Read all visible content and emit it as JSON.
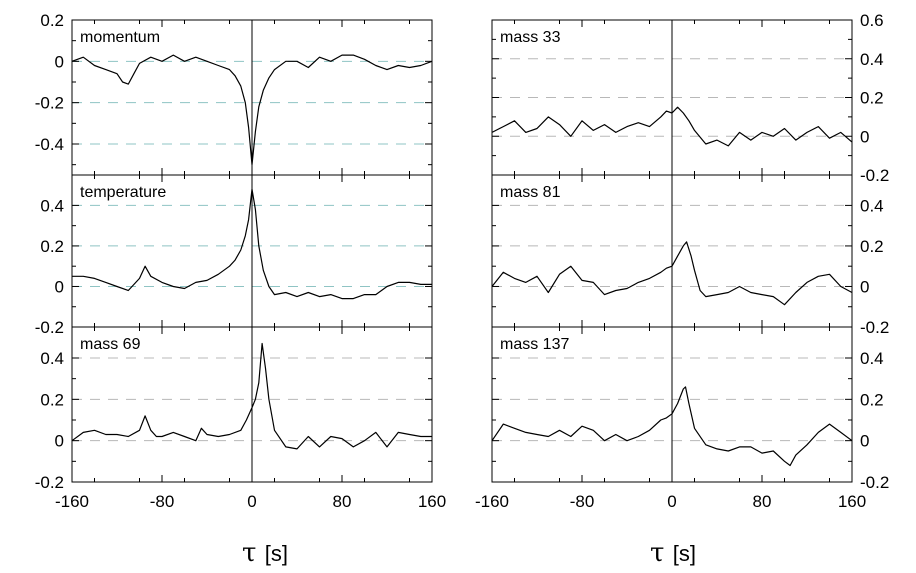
{
  "figure": {
    "x_title_symbol": "τ",
    "x_title_unit": "[s]"
  },
  "chart_data": [
    {
      "type": "line",
      "panel": "momentum",
      "column": "left",
      "y_axis_side": "left",
      "xlim": [
        -160,
        160
      ],
      "ylim": [
        -0.55,
        0.2
      ],
      "yticks": [
        0.2,
        0,
        -0.2,
        -0.4
      ],
      "yticklabels": [
        "0.2",
        "0",
        "-0.2",
        "-0.4"
      ],
      "xticks": [
        -160,
        -80,
        0,
        80,
        160
      ],
      "xticklabels": [],
      "dashed_gridlines": [
        0,
        -0.2,
        -0.4
      ],
      "gridline_color": "#8fc4c4",
      "line_color": "#000000",
      "x": [
        -160,
        -150,
        -140,
        -130,
        -120,
        -115,
        -110,
        -105,
        -100,
        -90,
        -80,
        -70,
        -60,
        -50,
        -40,
        -30,
        -20,
        -15,
        -10,
        -6,
        -3,
        0,
        3,
        6,
        10,
        15,
        20,
        30,
        40,
        50,
        60,
        70,
        80,
        90,
        100,
        110,
        120,
        130,
        140,
        150,
        160
      ],
      "y": [
        0.0,
        0.02,
        -0.02,
        -0.04,
        -0.06,
        -0.1,
        -0.11,
        -0.06,
        -0.01,
        0.02,
        0.0,
        0.03,
        0.0,
        0.02,
        0.0,
        -0.02,
        -0.04,
        -0.07,
        -0.12,
        -0.2,
        -0.32,
        -0.5,
        -0.34,
        -0.22,
        -0.14,
        -0.08,
        -0.04,
        0.0,
        0.0,
        -0.03,
        0.02,
        0.0,
        0.03,
        0.03,
        0.01,
        -0.02,
        -0.04,
        -0.02,
        -0.03,
        -0.02,
        0.0
      ]
    },
    {
      "type": "line",
      "panel": "temperature",
      "column": "left",
      "y_axis_side": "left",
      "xlim": [
        -160,
        160
      ],
      "ylim": [
        -0.2,
        0.55
      ],
      "yticks": [
        0.4,
        0.2,
        0,
        -0.2
      ],
      "yticklabels": [
        "0.4",
        "0.2",
        "0",
        "-0.2"
      ],
      "xticks": [
        -160,
        -80,
        0,
        80,
        160
      ],
      "xticklabels": [],
      "dashed_gridlines": [
        0.4,
        0.2,
        0
      ],
      "gridline_color": "#8fc4c4",
      "line_color": "#000000",
      "x": [
        -160,
        -150,
        -140,
        -130,
        -120,
        -110,
        -100,
        -95,
        -90,
        -80,
        -70,
        -60,
        -50,
        -40,
        -30,
        -20,
        -15,
        -10,
        -6,
        -3,
        0,
        3,
        6,
        10,
        15,
        20,
        30,
        40,
        50,
        60,
        70,
        80,
        90,
        100,
        110,
        120,
        130,
        140,
        150,
        160
      ],
      "y": [
        0.05,
        0.05,
        0.04,
        0.02,
        0.0,
        -0.02,
        0.04,
        0.1,
        0.05,
        0.02,
        0.0,
        -0.01,
        0.02,
        0.03,
        0.06,
        0.1,
        0.13,
        0.18,
        0.25,
        0.33,
        0.48,
        0.38,
        0.2,
        0.08,
        0.0,
        -0.04,
        -0.03,
        -0.05,
        -0.03,
        -0.05,
        -0.04,
        -0.06,
        -0.06,
        -0.04,
        -0.04,
        0.0,
        0.02,
        0.02,
        0.01,
        0.01
      ]
    },
    {
      "type": "line",
      "panel": "mass 69",
      "column": "left",
      "y_axis_side": "left",
      "xlim": [
        -160,
        160
      ],
      "ylim": [
        -0.2,
        0.55
      ],
      "yticks": [
        0.4,
        0.2,
        0,
        -0.2
      ],
      "yticklabels": [
        "0.4",
        "0.2",
        "0",
        "-0.2"
      ],
      "xticks": [
        -160,
        -80,
        0,
        80,
        160
      ],
      "xticklabels": [
        "-160",
        "-80",
        "0",
        "80",
        "160"
      ],
      "dashed_gridlines": [
        0.4,
        0.2,
        0
      ],
      "gridline_color": "#b8b8b8",
      "line_color": "#000000",
      "x": [
        -160,
        -150,
        -140,
        -130,
        -120,
        -110,
        -100,
        -95,
        -90,
        -85,
        -80,
        -70,
        -60,
        -50,
        -45,
        -40,
        -30,
        -20,
        -10,
        -5,
        0,
        3,
        6,
        9,
        12,
        15,
        20,
        30,
        40,
        50,
        60,
        70,
        80,
        90,
        100,
        110,
        120,
        130,
        140,
        150,
        160
      ],
      "y": [
        0.0,
        0.04,
        0.05,
        0.03,
        0.03,
        0.02,
        0.05,
        0.12,
        0.05,
        0.02,
        0.02,
        0.04,
        0.02,
        0.0,
        0.06,
        0.03,
        0.02,
        0.03,
        0.05,
        0.1,
        0.16,
        0.2,
        0.28,
        0.47,
        0.35,
        0.2,
        0.05,
        -0.03,
        -0.04,
        0.02,
        -0.03,
        0.02,
        0.01,
        -0.03,
        0.0,
        0.04,
        -0.03,
        0.04,
        0.03,
        0.02,
        0.02
      ]
    },
    {
      "type": "line",
      "panel": "mass 33",
      "column": "right",
      "y_axis_side": "right",
      "xlim": [
        -160,
        160
      ],
      "ylim": [
        -0.2,
        0.6
      ],
      "yticks": [
        0.6,
        0.4,
        0.2,
        0,
        -0.2
      ],
      "yticklabels": [
        "0.6",
        "0.4",
        "0.2",
        "0",
        "-0.2"
      ],
      "xticks": [
        -160,
        -80,
        0,
        80,
        160
      ],
      "xticklabels": [],
      "dashed_gridlines": [
        0.4,
        0.2,
        0
      ],
      "gridline_color": "#b8b8b8",
      "line_color": "#000000",
      "x": [
        -160,
        -150,
        -140,
        -130,
        -120,
        -110,
        -100,
        -90,
        -80,
        -70,
        -60,
        -50,
        -40,
        -30,
        -20,
        -10,
        -5,
        0,
        5,
        10,
        15,
        20,
        30,
        40,
        50,
        60,
        70,
        80,
        90,
        100,
        110,
        120,
        130,
        140,
        150,
        160
      ],
      "y": [
        0.02,
        0.05,
        0.08,
        0.02,
        0.04,
        0.1,
        0.06,
        0.0,
        0.08,
        0.03,
        0.06,
        0.02,
        0.05,
        0.07,
        0.05,
        0.1,
        0.13,
        0.12,
        0.15,
        0.12,
        0.08,
        0.03,
        -0.04,
        -0.02,
        -0.05,
        0.02,
        -0.02,
        0.02,
        0.0,
        0.04,
        -0.02,
        0.02,
        0.05,
        -0.01,
        0.02,
        -0.03
      ]
    },
    {
      "type": "line",
      "panel": "mass 81",
      "column": "right",
      "y_axis_side": "right",
      "xlim": [
        -160,
        160
      ],
      "ylim": [
        -0.2,
        0.55
      ],
      "yticks": [
        0.4,
        0.2,
        0,
        -0.2
      ],
      "yticklabels": [
        "0.4",
        "0.2",
        "0",
        "-0.2"
      ],
      "xticks": [
        -160,
        -80,
        0,
        80,
        160
      ],
      "xticklabels": [],
      "dashed_gridlines": [
        0.4,
        0.2,
        0
      ],
      "gridline_color": "#b8b8b8",
      "line_color": "#000000",
      "x": [
        -160,
        -150,
        -140,
        -130,
        -120,
        -110,
        -100,
        -90,
        -80,
        -70,
        -60,
        -50,
        -40,
        -30,
        -20,
        -10,
        -5,
        0,
        5,
        10,
        13,
        17,
        20,
        25,
        30,
        40,
        50,
        60,
        70,
        80,
        90,
        100,
        110,
        120,
        130,
        140,
        150,
        160
      ],
      "y": [
        0.0,
        0.07,
        0.04,
        0.02,
        0.05,
        -0.03,
        0.06,
        0.1,
        0.03,
        0.02,
        -0.04,
        -0.02,
        -0.01,
        0.02,
        0.04,
        0.07,
        0.09,
        0.1,
        0.15,
        0.2,
        0.22,
        0.15,
        0.08,
        -0.02,
        -0.05,
        -0.04,
        -0.03,
        0.0,
        -0.03,
        -0.04,
        -0.05,
        -0.09,
        -0.03,
        0.02,
        0.05,
        0.06,
        0.0,
        -0.03
      ]
    },
    {
      "type": "line",
      "panel": "mass 137",
      "column": "right",
      "y_axis_side": "right",
      "xlim": [
        -160,
        160
      ],
      "ylim": [
        -0.2,
        0.55
      ],
      "yticks": [
        0.4,
        0.2,
        0,
        -0.2
      ],
      "yticklabels": [
        "0.4",
        "0.2",
        "0",
        "-0.2"
      ],
      "xticks": [
        -160,
        -80,
        0,
        80,
        160
      ],
      "xticklabels": [
        "-160",
        "-80",
        "0",
        "80",
        "160"
      ],
      "dashed_gridlines": [
        0.4,
        0.2,
        0
      ],
      "gridline_color": "#b8b8b8",
      "line_color": "#000000",
      "x": [
        -160,
        -150,
        -140,
        -130,
        -120,
        -110,
        -100,
        -90,
        -80,
        -70,
        -60,
        -50,
        -40,
        -30,
        -20,
        -10,
        -5,
        0,
        5,
        10,
        12,
        15,
        20,
        30,
        40,
        50,
        60,
        70,
        80,
        90,
        100,
        105,
        110,
        120,
        130,
        140,
        150,
        160
      ],
      "y": [
        0.0,
        0.08,
        0.06,
        0.04,
        0.03,
        0.02,
        0.05,
        0.02,
        0.07,
        0.05,
        0.0,
        0.03,
        0.0,
        0.02,
        0.05,
        0.1,
        0.11,
        0.13,
        0.18,
        0.25,
        0.26,
        0.18,
        0.06,
        -0.02,
        -0.04,
        -0.05,
        -0.03,
        -0.03,
        -0.06,
        -0.05,
        -0.1,
        -0.12,
        -0.07,
        -0.02,
        0.04,
        0.08,
        0.04,
        0.0
      ]
    }
  ]
}
